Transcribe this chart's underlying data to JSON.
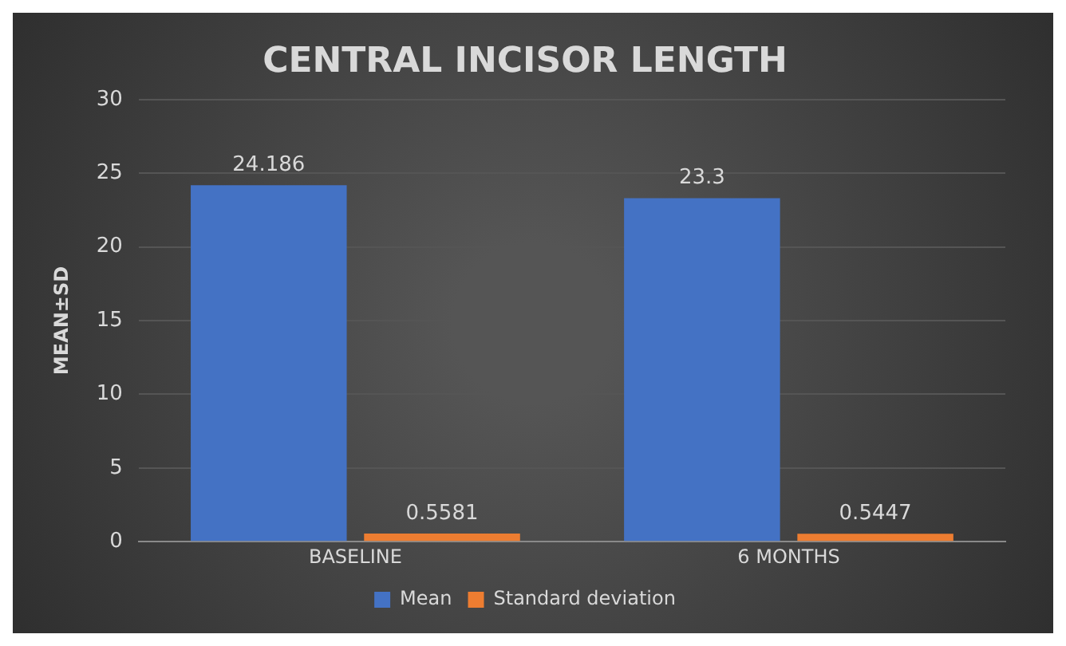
{
  "chart_data": {
    "type": "bar",
    "title": "CENTRAL INCISOR LENGTH",
    "ylabel": "MEAN±SD",
    "categories": [
      "BASELINE",
      "6 MONTHS"
    ],
    "series": [
      {
        "name": "Mean",
        "color": "#4472c4",
        "values": [
          24.186,
          23.3
        ]
      },
      {
        "name": "Standard deviation",
        "color": "#ed7d31",
        "values": [
          0.5581,
          0.5447
        ]
      }
    ],
    "ylim": [
      0,
      30
    ],
    "yticks": [
      0,
      5,
      10,
      15,
      20,
      25,
      30
    ],
    "grid": "y",
    "legend": "bottom",
    "data_labels": true
  }
}
